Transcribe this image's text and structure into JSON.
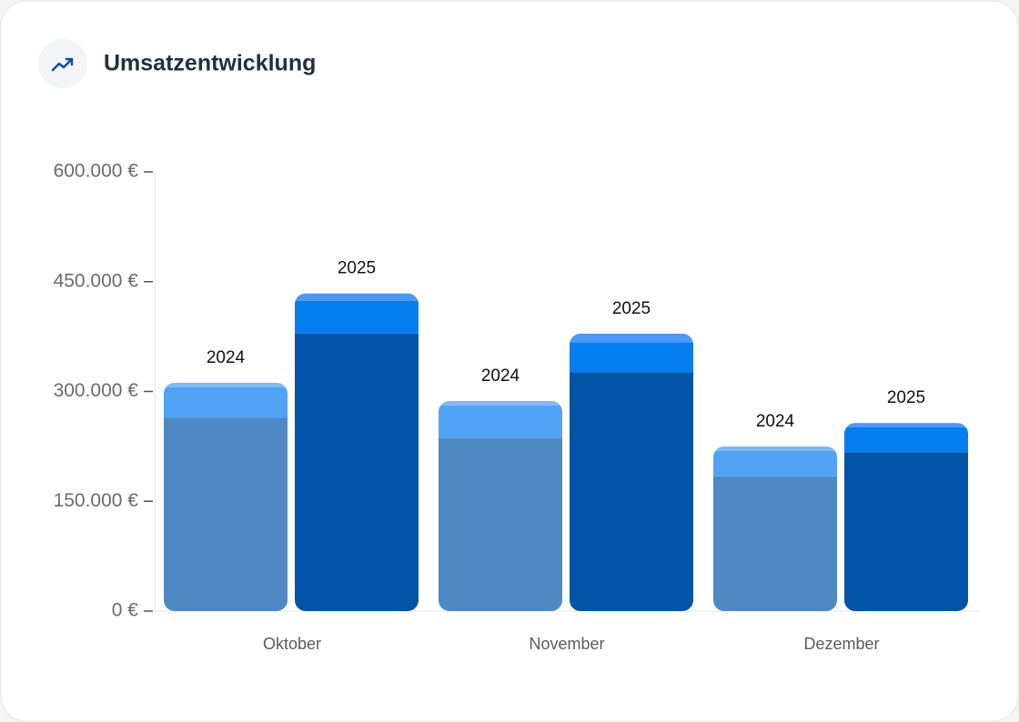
{
  "chart_data": {
    "type": "stacked-grouped-bar",
    "title": "Umsatzentwicklung",
    "categories": [
      "Oktober",
      "November",
      "Dezember"
    ],
    "stacks": [
      {
        "label": "2024",
        "series": [
          {
            "color": "#4f89c4",
            "values": [
              264000,
              237000,
              184000
            ]
          },
          {
            "color": "#50a3f5",
            "values": [
              42000,
              44000,
              35000
            ]
          },
          {
            "color": "#80b8f6",
            "values": [
              6000,
              6000,
              6000
            ]
          }
        ]
      },
      {
        "label": "2025",
        "series": [
          {
            "color": "#0254a6",
            "values": [
              379000,
              326000,
              217000
            ]
          },
          {
            "color": "#067ef0",
            "values": [
              45000,
              41000,
              34000
            ]
          },
          {
            "color": "#4d97f5",
            "values": [
              10000,
              12000,
              6000
            ]
          }
        ]
      }
    ],
    "ylim": [
      0,
      600000
    ],
    "yticks": [
      {
        "value": 0,
        "label": "0 €"
      },
      {
        "value": 150000,
        "label": "150.000 €"
      },
      {
        "value": 300000,
        "label": "300.000 €"
      },
      {
        "value": 450000,
        "label": "450.000 €"
      },
      {
        "value": 600000,
        "label": "600.000 €"
      }
    ]
  }
}
